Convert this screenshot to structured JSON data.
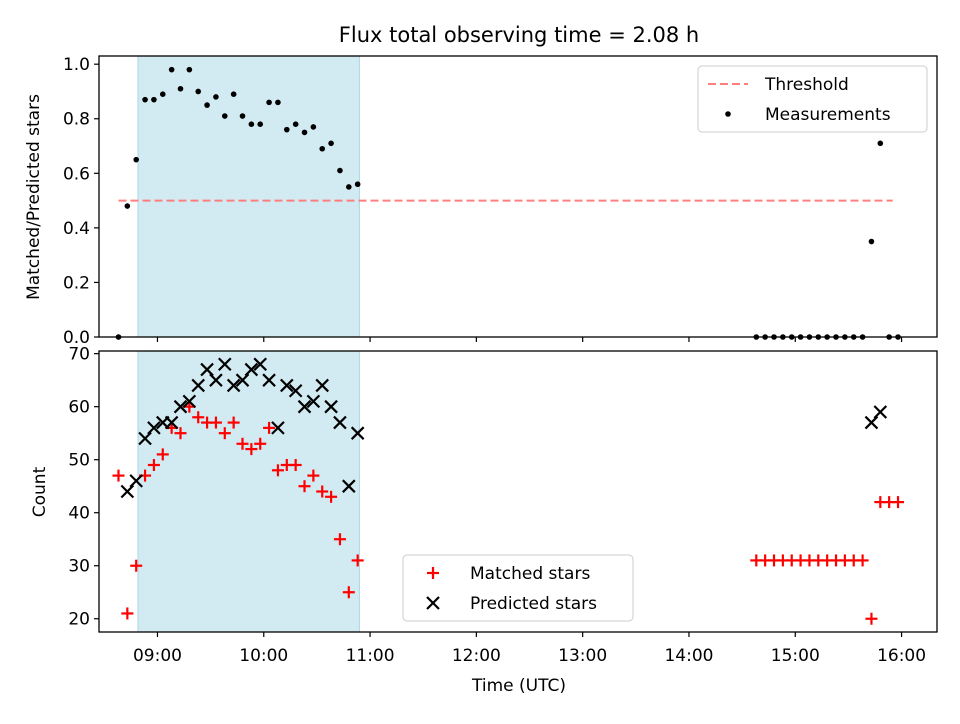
{
  "title": "Flux total observing time = 2.08 h",
  "chart_data": [
    {
      "type": "scatter",
      "panel": "top",
      "ylabel": "Matched/Predicted stars",
      "xlabel": "",
      "xlim": [
        "08:27",
        "16:20"
      ],
      "ylim": [
        0,
        1.03
      ],
      "yticks": [
        0.0,
        0.2,
        0.4,
        0.6,
        0.8,
        1.0
      ],
      "ytick_labels": [
        "0.0",
        "0.2",
        "0.4",
        "0.6",
        "0.8",
        "1.0"
      ],
      "xticks": [
        "09:00",
        "10:00",
        "11:00",
        "12:00",
        "13:00",
        "14:00",
        "15:00",
        "16:00"
      ],
      "grid": false,
      "legend": "top-right",
      "shaded_interval": {
        "start": "08:49",
        "end": "10:54",
        "color": "#add8e6"
      },
      "threshold": {
        "name": "Threshold",
        "value": 0.5,
        "x": [
          "08:38",
          "15:55"
        ],
        "color": "#ff7f7f",
        "style": "dashed"
      },
      "series": [
        {
          "name": "Measurements",
          "color": "#000000",
          "marker": "dot",
          "points": [
            [
              "08:38",
              0.0
            ],
            [
              "08:43",
              0.48
            ],
            [
              "08:48",
              0.65
            ],
            [
              "08:53",
              0.87
            ],
            [
              "08:58",
              0.87
            ],
            [
              "09:03",
              0.89
            ],
            [
              "09:08",
              0.98
            ],
            [
              "09:13",
              0.91
            ],
            [
              "09:18",
              0.98
            ],
            [
              "09:23",
              0.9
            ],
            [
              "09:28",
              0.85
            ],
            [
              "09:33",
              0.88
            ],
            [
              "09:38",
              0.81
            ],
            [
              "09:43",
              0.89
            ],
            [
              "09:48",
              0.81
            ],
            [
              "09:53",
              0.78
            ],
            [
              "09:58",
              0.78
            ],
            [
              "10:03",
              0.86
            ],
            [
              "10:08",
              0.86
            ],
            [
              "10:13",
              0.76
            ],
            [
              "10:18",
              0.78
            ],
            [
              "10:23",
              0.75
            ],
            [
              "10:28",
              0.77
            ],
            [
              "10:33",
              0.69
            ],
            [
              "10:38",
              0.71
            ],
            [
              "10:43",
              0.61
            ],
            [
              "10:48",
              0.55
            ],
            [
              "10:53",
              0.56
            ],
            [
              "14:38",
              0.0
            ],
            [
              "14:43",
              0.0
            ],
            [
              "14:48",
              0.0
            ],
            [
              "14:53",
              0.0
            ],
            [
              "14:58",
              0.0
            ],
            [
              "15:03",
              0.0
            ],
            [
              "15:08",
              0.0
            ],
            [
              "15:13",
              0.0
            ],
            [
              "15:18",
              0.0
            ],
            [
              "15:23",
              0.0
            ],
            [
              "15:28",
              0.0
            ],
            [
              "15:33",
              0.0
            ],
            [
              "15:38",
              0.0
            ],
            [
              "15:43",
              0.35
            ],
            [
              "15:48",
              0.71
            ],
            [
              "15:53",
              0.0
            ],
            [
              "15:58",
              0.0
            ]
          ]
        }
      ]
    },
    {
      "type": "scatter",
      "panel": "bottom",
      "ylabel": "Count",
      "xlabel": "Time (UTC)",
      "xlim": [
        "08:27",
        "16:20"
      ],
      "ylim": [
        17.5,
        70.5
      ],
      "yticks": [
        20,
        30,
        40,
        50,
        60,
        70
      ],
      "ytick_labels": [
        "20",
        "30",
        "40",
        "50",
        "60",
        "70"
      ],
      "xticks": [
        "09:00",
        "10:00",
        "11:00",
        "12:00",
        "13:00",
        "14:00",
        "15:00",
        "16:00"
      ],
      "xtick_labels": [
        "09:00",
        "10:00",
        "11:00",
        "12:00",
        "13:00",
        "14:00",
        "15:00",
        "16:00"
      ],
      "grid": false,
      "legend": "lower-center",
      "shaded_interval": {
        "start": "08:49",
        "end": "10:54",
        "color": "#add8e6"
      },
      "series": [
        {
          "name": "Matched stars",
          "color": "#ff0000",
          "marker": "plus",
          "points": [
            [
              "08:38",
              47
            ],
            [
              "08:43",
              21
            ],
            [
              "08:48",
              30
            ],
            [
              "08:53",
              47
            ],
            [
              "08:58",
              49
            ],
            [
              "09:03",
              51
            ],
            [
              "09:08",
              56
            ],
            [
              "09:13",
              55
            ],
            [
              "09:18",
              60
            ],
            [
              "09:23",
              58
            ],
            [
              "09:28",
              57
            ],
            [
              "09:33",
              57
            ],
            [
              "09:38",
              55
            ],
            [
              "09:43",
              57
            ],
            [
              "09:48",
              53
            ],
            [
              "09:53",
              52
            ],
            [
              "09:58",
              53
            ],
            [
              "10:03",
              56
            ],
            [
              "10:08",
              48
            ],
            [
              "10:13",
              49
            ],
            [
              "10:18",
              49
            ],
            [
              "10:23",
              45
            ],
            [
              "10:28",
              47
            ],
            [
              "10:33",
              44
            ],
            [
              "10:38",
              43
            ],
            [
              "10:43",
              35
            ],
            [
              "10:48",
              25
            ],
            [
              "10:53",
              31
            ],
            [
              "14:38",
              31
            ],
            [
              "14:43",
              31
            ],
            [
              "14:48",
              31
            ],
            [
              "14:53",
              31
            ],
            [
              "14:58",
              31
            ],
            [
              "15:03",
              31
            ],
            [
              "15:08",
              31
            ],
            [
              "15:13",
              31
            ],
            [
              "15:18",
              31
            ],
            [
              "15:23",
              31
            ],
            [
              "15:28",
              31
            ],
            [
              "15:33",
              31
            ],
            [
              "15:38",
              31
            ],
            [
              "15:43",
              20
            ],
            [
              "15:48",
              42
            ],
            [
              "15:53",
              42
            ],
            [
              "15:58",
              42
            ]
          ]
        },
        {
          "name": "Predicted stars",
          "color": "#000000",
          "marker": "x",
          "points": [
            [
              "08:43",
              44
            ],
            [
              "08:48",
              46
            ],
            [
              "08:53",
              54
            ],
            [
              "08:58",
              56
            ],
            [
              "09:03",
              57
            ],
            [
              "09:08",
              57
            ],
            [
              "09:13",
              60
            ],
            [
              "09:18",
              61
            ],
            [
              "09:23",
              64
            ],
            [
              "09:28",
              67
            ],
            [
              "09:33",
              65
            ],
            [
              "09:38",
              68
            ],
            [
              "09:43",
              64
            ],
            [
              "09:48",
              65
            ],
            [
              "09:53",
              67
            ],
            [
              "09:58",
              68
            ],
            [
              "10:03",
              65
            ],
            [
              "10:08",
              56
            ],
            [
              "10:13",
              64
            ],
            [
              "10:18",
              63
            ],
            [
              "10:23",
              60
            ],
            [
              "10:28",
              61
            ],
            [
              "10:33",
              64
            ],
            [
              "10:38",
              60
            ],
            [
              "10:43",
              57
            ],
            [
              "10:48",
              45
            ],
            [
              "10:53",
              55
            ],
            [
              "15:43",
              57
            ],
            [
              "15:48",
              59
            ]
          ]
        }
      ]
    }
  ]
}
